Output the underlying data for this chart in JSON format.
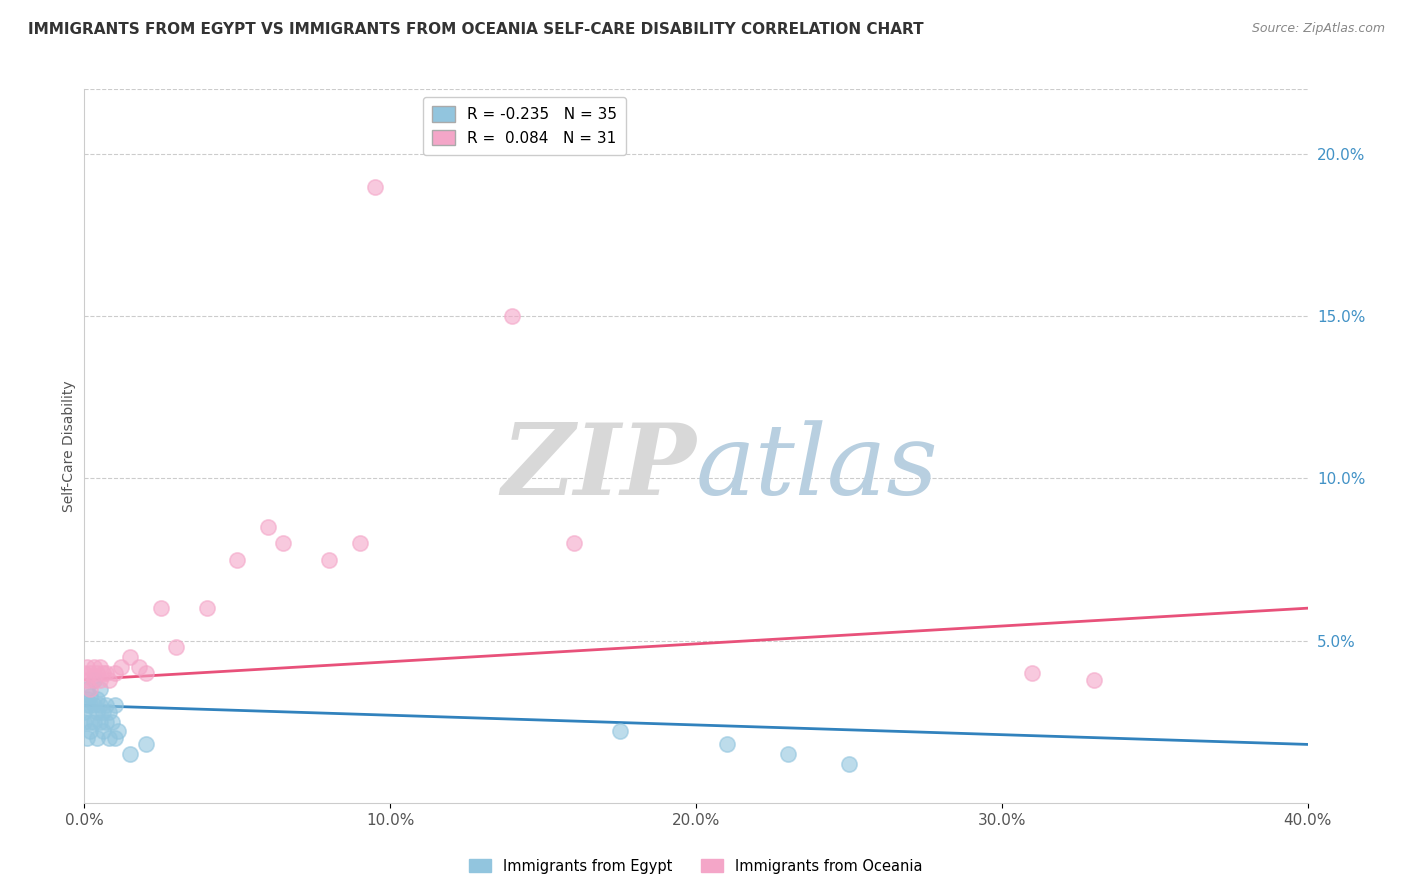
{
  "title": "IMMIGRANTS FROM EGYPT VS IMMIGRANTS FROM OCEANIA SELF-CARE DISABILITY CORRELATION CHART",
  "source": "Source: ZipAtlas.com",
  "ylabel": "Self-Care Disability",
  "right_yticks": [
    "20.0%",
    "15.0%",
    "10.0%",
    "5.0%"
  ],
  "right_ytick_vals": [
    0.2,
    0.15,
    0.1,
    0.05
  ],
  "egypt_color": "#92c5de",
  "oceania_color": "#f4a6c8",
  "egypt_line_color": "#3182bd",
  "oceania_line_color": "#e8517a",
  "xlim": [
    0.0,
    0.4
  ],
  "ylim": [
    0.0,
    0.22
  ],
  "egypt_x": [
    0.0,
    0.0,
    0.001,
    0.001,
    0.001,
    0.001,
    0.002,
    0.002,
    0.002,
    0.002,
    0.003,
    0.003,
    0.003,
    0.004,
    0.004,
    0.004,
    0.005,
    0.005,
    0.005,
    0.006,
    0.006,
    0.007,
    0.007,
    0.008,
    0.008,
    0.009,
    0.01,
    0.01,
    0.011,
    0.015,
    0.02,
    0.175,
    0.21,
    0.23,
    0.25
  ],
  "egypt_y": [
    0.025,
    0.028,
    0.02,
    0.03,
    0.032,
    0.035,
    0.022,
    0.025,
    0.03,
    0.033,
    0.025,
    0.03,
    0.038,
    0.02,
    0.028,
    0.032,
    0.025,
    0.03,
    0.035,
    0.022,
    0.028,
    0.025,
    0.03,
    0.02,
    0.028,
    0.025,
    0.02,
    0.03,
    0.022,
    0.015,
    0.018,
    0.022,
    0.018,
    0.015,
    0.012
  ],
  "oceania_x": [
    0.0,
    0.001,
    0.001,
    0.002,
    0.002,
    0.003,
    0.003,
    0.004,
    0.005,
    0.005,
    0.006,
    0.007,
    0.008,
    0.01,
    0.012,
    0.015,
    0.018,
    0.02,
    0.025,
    0.03,
    0.04,
    0.05,
    0.06,
    0.065,
    0.08,
    0.09,
    0.095,
    0.14,
    0.16,
    0.31,
    0.33
  ],
  "oceania_y": [
    0.04,
    0.038,
    0.042,
    0.035,
    0.04,
    0.038,
    0.042,
    0.04,
    0.038,
    0.042,
    0.04,
    0.04,
    0.038,
    0.04,
    0.042,
    0.045,
    0.042,
    0.04,
    0.06,
    0.048,
    0.06,
    0.075,
    0.085,
    0.08,
    0.075,
    0.08,
    0.19,
    0.15,
    0.08,
    0.04,
    0.038
  ],
  "egypt_trend_x": [
    0.0,
    0.4
  ],
  "egypt_trend_y": [
    0.03,
    0.018
  ],
  "oceania_trend_x": [
    0.0,
    0.4
  ],
  "oceania_trend_y": [
    0.038,
    0.06
  ]
}
